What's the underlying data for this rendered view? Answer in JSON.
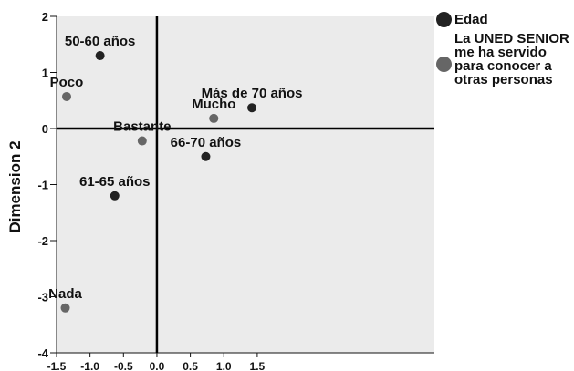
{
  "chart_data": {
    "type": "scatter",
    "xlim": [
      -1.5,
      2.8
    ],
    "ylim": [
      -4,
      2
    ],
    "x_ticks": [
      "-1.5",
      "-1.0",
      "-0.5",
      "0.0",
      "0.5",
      "1.0",
      "1.5"
    ],
    "y_ticks": [
      "2",
      "1",
      "0",
      "-1",
      "-2",
      "-3",
      "-4"
    ],
    "ylabel": "Dimension 2",
    "xlabel": "",
    "grid": false,
    "legend_position": "right",
    "background_color": "#ebebeb",
    "series": [
      {
        "name": "Edad",
        "color": "#222222",
        "points": [
          {
            "label": "50-60 años",
            "x": -0.85,
            "y": 1.3
          },
          {
            "label": "Más de 70 años",
            "x": 1.42,
            "y": 0.37
          },
          {
            "label": "66-70 años",
            "x": 0.73,
            "y": -0.5
          },
          {
            "label": "61-65 años",
            "x": -0.63,
            "y": -1.2
          }
        ]
      },
      {
        "name": "La UNED SENIOR me ha servido para conocer a otras personas",
        "color": "#666666",
        "points": [
          {
            "label": "Poco",
            "x": -1.35,
            "y": 0.57
          },
          {
            "label": "Mucho",
            "x": 0.85,
            "y": 0.18
          },
          {
            "label": "Bastante",
            "x": -0.22,
            "y": -0.22
          },
          {
            "label": "Nada",
            "x": -1.37,
            "y": -3.2
          }
        ]
      }
    ]
  }
}
